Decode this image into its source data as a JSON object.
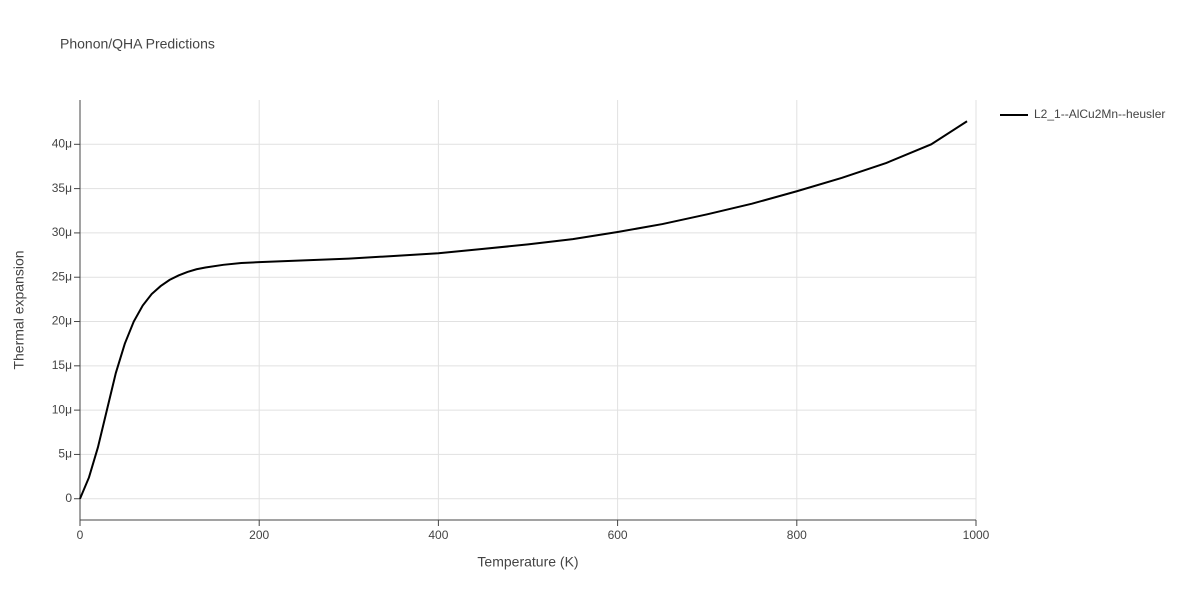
{
  "chart_data": {
    "type": "line",
    "title": "Phonon/QHA Predictions",
    "xlabel": "Temperature (K)",
    "ylabel": "Thermal expansion",
    "x": [
      0,
      10,
      20,
      30,
      40,
      50,
      60,
      70,
      80,
      90,
      100,
      110,
      120,
      130,
      140,
      160,
      180,
      200,
      250,
      300,
      350,
      400,
      450,
      500,
      550,
      600,
      650,
      700,
      750,
      800,
      850,
      900,
      950,
      990
    ],
    "series": [
      {
        "name": "L2_1--AlCu2Mn--heusler",
        "color": "#000000",
        "values": [
          0,
          2.4,
          5.8,
          10,
          14.2,
          17.5,
          20,
          21.8,
          23.1,
          24.0,
          24.7,
          25.2,
          25.6,
          25.9,
          26.1,
          26.4,
          26.6,
          26.7,
          26.9,
          27.1,
          27.4,
          27.7,
          28.2,
          28.7,
          29.3,
          30.1,
          31.0,
          32.1,
          33.3,
          34.7,
          36.2,
          37.9,
          40.0,
          42.6
        ]
      }
    ],
    "xlim": [
      0,
      1000
    ],
    "xticks": [
      0,
      200,
      400,
      600,
      800,
      1000
    ],
    "ylim": [
      -2.4,
      45
    ],
    "yticks": [
      0,
      {
        "value": 5,
        "label": "5μ"
      },
      {
        "value": 10,
        "label": "10μ"
      },
      {
        "value": 15,
        "label": "15μ"
      },
      {
        "value": 20,
        "label": "20μ"
      },
      {
        "value": 25,
        "label": "25μ"
      },
      {
        "value": 30,
        "label": "30μ"
      },
      {
        "value": 35,
        "label": "35μ"
      },
      {
        "value": 40,
        "label": "40μ"
      }
    ],
    "grid": true,
    "legend": "right"
  }
}
